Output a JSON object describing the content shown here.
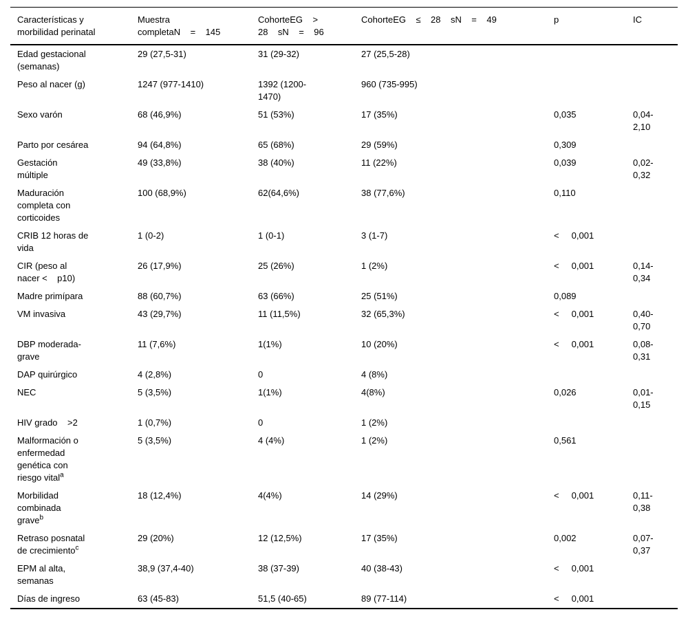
{
  "page": {
    "background_color": "#ffffff",
    "text_color": "#000000",
    "rule_color": "#000000"
  },
  "table": {
    "columns": [
      {
        "id": "caracteristicas",
        "label": "Características y\nmorbilidad perinatal"
      },
      {
        "id": "muestra_completa",
        "label": "Muestra\ncompletaN    =    145"
      },
      {
        "id": "cohorte_gt28",
        "label": "CohorteEG    >\n28    sN    =    96"
      },
      {
        "id": "cohorte_le28",
        "label": "CohorteEG    ≤    28    sN    =    49"
      },
      {
        "id": "p",
        "label": "p"
      },
      {
        "id": "ic",
        "label": "IC"
      }
    ],
    "rows": [
      {
        "label": "Edad gestacional\n(semanas)",
        "muestra_completa": "29 (27,5-31)",
        "cohorte_gt28": "31 (29-32)",
        "cohorte_le28": "27 (25,5-28)",
        "p": "",
        "ic": ""
      },
      {
        "label": "Peso al nacer (g)",
        "muestra_completa": "1247 (977-1410)",
        "cohorte_gt28": "1392 (1200-\n1470)",
        "cohorte_le28": "960 (735-995)",
        "p": "",
        "ic": ""
      },
      {
        "label": "Sexo varón",
        "muestra_completa": "68 (46,9%)",
        "cohorte_gt28": "51 (53%)",
        "cohorte_le28": "17 (35%)",
        "p": "0,035",
        "ic": "0,04-\n2,10"
      },
      {
        "label": "Parto por cesárea",
        "muestra_completa": "94 (64,8%)",
        "cohorte_gt28": "65 (68%)",
        "cohorte_le28": "29 (59%)",
        "p": "0,309",
        "ic": ""
      },
      {
        "label": "Gestación\nmúltiple",
        "muestra_completa": "49 (33,8%)",
        "cohorte_gt28": "38 (40%)",
        "cohorte_le28": "11 (22%)",
        "p": "0,039",
        "ic": "0,02-\n0,32"
      },
      {
        "label": "Maduración\ncompleta con\ncorticoides",
        "muestra_completa": "100 (68,9%)",
        "cohorte_gt28": "62(64,6%)",
        "cohorte_le28": "38 (77,6%)",
        "p": "0,110",
        "ic": ""
      },
      {
        "label": "CRIB 12 horas de\nvida",
        "muestra_completa": "1 (0-2)",
        "cohorte_gt28": "1 (0-1)",
        "cohorte_le28": "3 (1-7)",
        "p": "<     0,001",
        "ic": ""
      },
      {
        "label": "CIR (peso al\nnacer <    p10)",
        "muestra_completa": "26 (17,9%)",
        "cohorte_gt28": "25 (26%)",
        "cohorte_le28": "1 (2%)",
        "p": "<     0,001",
        "ic": "0,14-\n0,34"
      },
      {
        "label": "Madre primípara",
        "muestra_completa": "88 (60,7%)",
        "cohorte_gt28": "63 (66%)",
        "cohorte_le28": "25 (51%)",
        "p": "0,089",
        "ic": ""
      },
      {
        "label": "VM invasiva",
        "muestra_completa": "43 (29,7%)",
        "cohorte_gt28": "11 (11,5%)",
        "cohorte_le28": "32 (65,3%)",
        "p": "<     0,001",
        "ic": "0,40-\n0,70"
      },
      {
        "label": "DBP moderada-\ngrave",
        "muestra_completa": "11 (7,6%)",
        "cohorte_gt28": "1(1%)",
        "cohorte_le28": "10 (20%)",
        "p": "<     0,001",
        "ic": "0,08-\n0,31"
      },
      {
        "label": "DAP quirúrgico",
        "muestra_completa": "4 (2,8%)",
        "cohorte_gt28": "0",
        "cohorte_le28": "4 (8%)",
        "p": "",
        "ic": ""
      },
      {
        "label": "NEC",
        "muestra_completa": "5 (3,5%)",
        "cohorte_gt28": "1(1%)",
        "cohorte_le28": "4(8%)",
        "p": "0,026",
        "ic": "0,01-\n0,15"
      },
      {
        "label": "HIV grado    >2",
        "muestra_completa": "1 (0,7%)",
        "cohorte_gt28": "0",
        "cohorte_le28": "1 (2%)",
        "p": "",
        "ic": ""
      },
      {
        "label": "Malformación o\nenfermedad\ngenética con\nriesgo vital",
        "label_sup": "a",
        "muestra_completa": "5 (3,5%)",
        "cohorte_gt28": "4 (4%)",
        "cohorte_le28": "1 (2%)",
        "p": "0,561",
        "ic": ""
      },
      {
        "label": "Morbilidad\ncombinada\ngrave",
        "label_sup": "b",
        "muestra_completa": "18 (12,4%)",
        "cohorte_gt28": "4(4%)",
        "cohorte_le28": "14 (29%)",
        "p": "<     0,001",
        "ic": "0,11-\n0,38"
      },
      {
        "label": "Retraso posnatal\nde crecimiento",
        "label_sup": "c",
        "muestra_completa": "29 (20%)",
        "cohorte_gt28": "12 (12,5%)",
        "cohorte_le28": "17 (35%)",
        "p": "0,002",
        "ic": "0,07-\n0,37"
      },
      {
        "label": "EPM al alta,\nsemanas",
        "muestra_completa": "38,9 (37,4-40)",
        "cohorte_gt28": "38 (37-39)",
        "cohorte_le28": "40 (38-43)",
        "p": "<     0,001",
        "ic": ""
      },
      {
        "label": "Días de ingreso",
        "muestra_completa": "63 (45-83)",
        "cohorte_gt28": "51,5 (40-65)",
        "cohorte_le28": "89 (77-114)",
        "p": "<     0,001",
        "ic": ""
      }
    ]
  }
}
